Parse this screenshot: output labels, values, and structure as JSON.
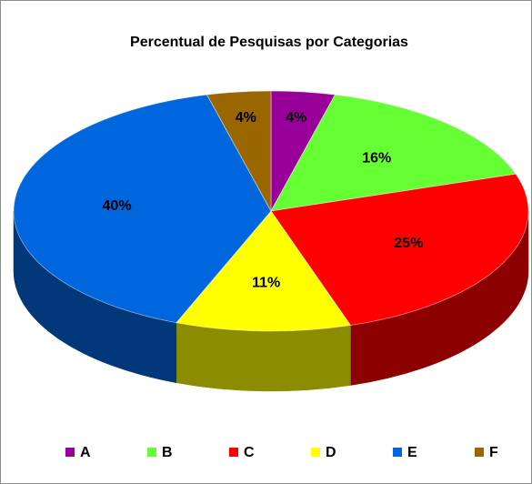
{
  "chart_data": {
    "type": "pie",
    "title": "Percentual de Pesquisas por Categorias",
    "categories": [
      "A",
      "B",
      "C",
      "D",
      "E",
      "F"
    ],
    "values": [
      4,
      16,
      25,
      11,
      40,
      4
    ],
    "value_labels": [
      "4%",
      "16%",
      "25%",
      "11%",
      "40%",
      "4%"
    ],
    "colors": [
      "#990099",
      "#66ff33",
      "#ff0000",
      "#ffff00",
      "#0066dd",
      "#996600"
    ],
    "legend": "bottom"
  }
}
